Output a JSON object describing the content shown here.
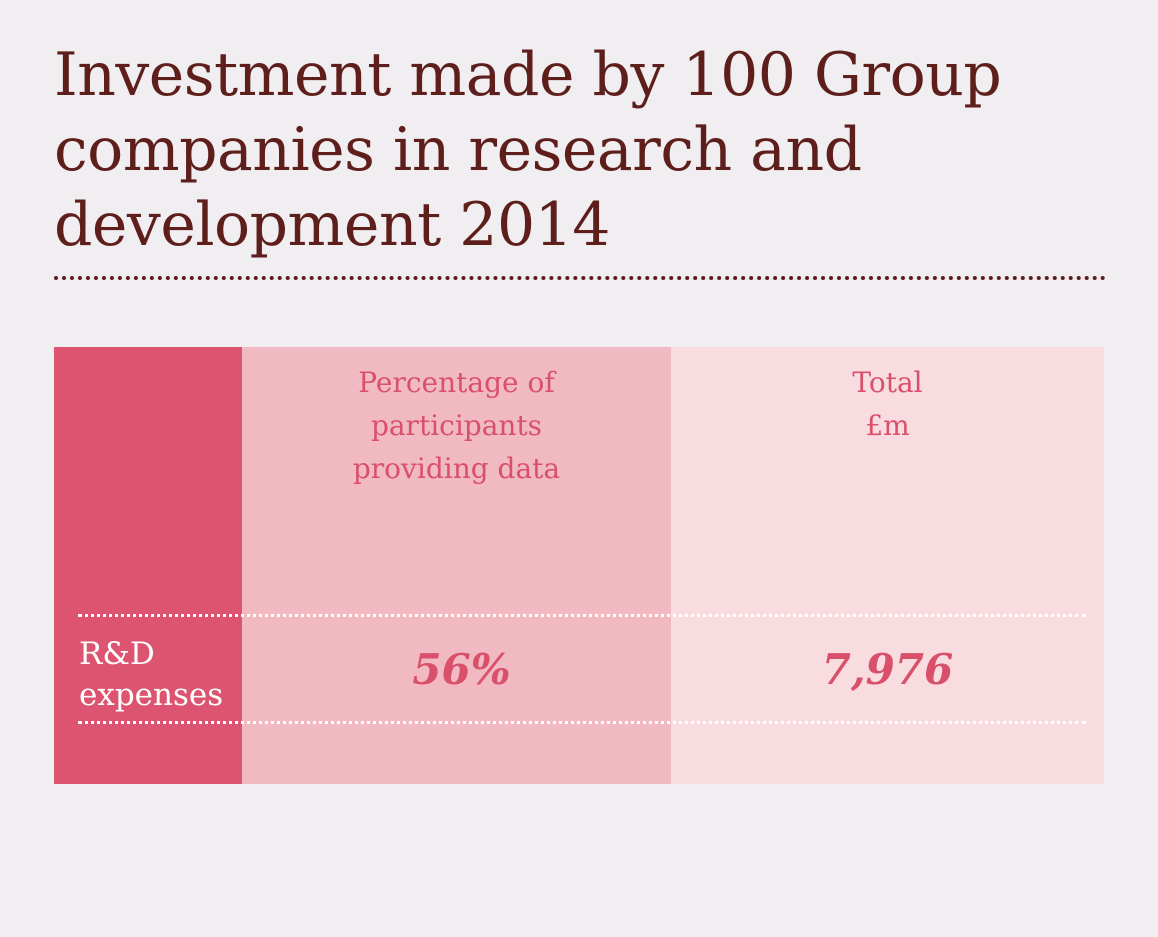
{
  "colors": {
    "background": "#f0eef0",
    "title_text": "#5e1f1c",
    "label_column": "#dc5470",
    "percentage_column": "#f1bac3",
    "total_column": "#f8dce0",
    "accent_text": "#d9506b",
    "white": "#ffffff"
  },
  "chart_data": {
    "type": "table",
    "title": "Investment made by 100 Group companies in research and development 2014",
    "columns": [
      {
        "header_lines": [
          "Percentage of",
          "participants",
          "providing data"
        ]
      },
      {
        "header_lines": [
          "Total",
          "£m"
        ]
      }
    ],
    "rows": [
      {
        "label_lines": [
          "R&D",
          "expenses"
        ],
        "values": [
          "56%",
          "7,976"
        ]
      }
    ]
  }
}
